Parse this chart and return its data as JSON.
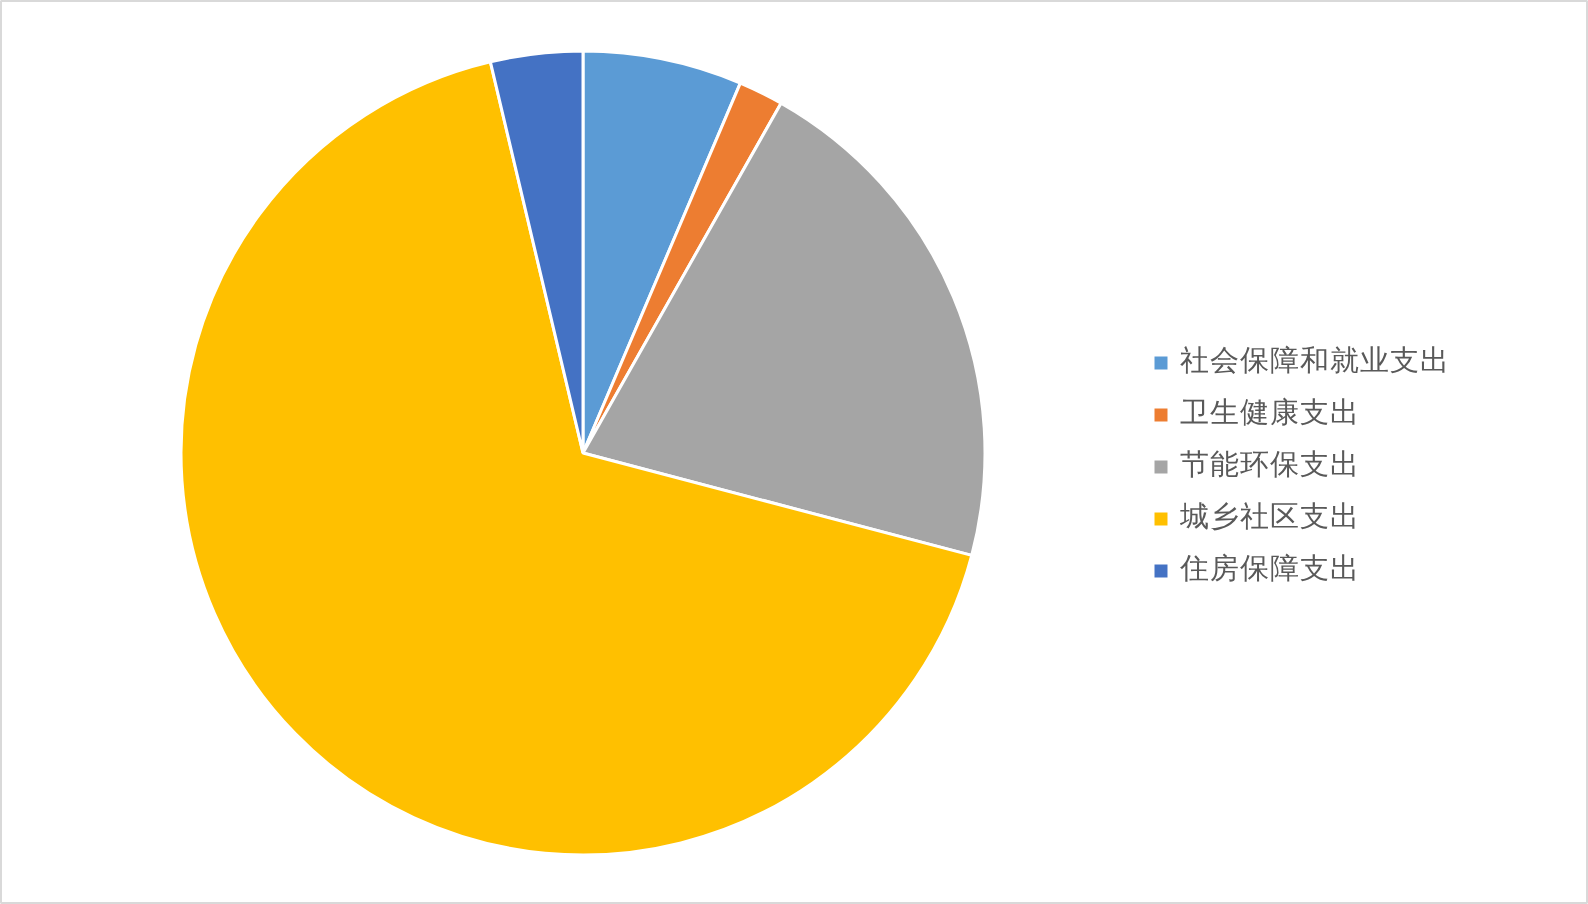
{
  "chart_data": {
    "type": "pie",
    "categories": [
      "社会保障和就业支出",
      "卫生健康支出",
      "节能环保支出",
      "城乡社区支出",
      "住房保障支出"
    ],
    "values": [
      6.4,
      1.8,
      20.9,
      67.2,
      3.7
    ],
    "colors": [
      "#5b9bd5",
      "#ed7d31",
      "#a5a5a5",
      "#ffc000",
      "#4472c4"
    ],
    "legend": "right"
  }
}
